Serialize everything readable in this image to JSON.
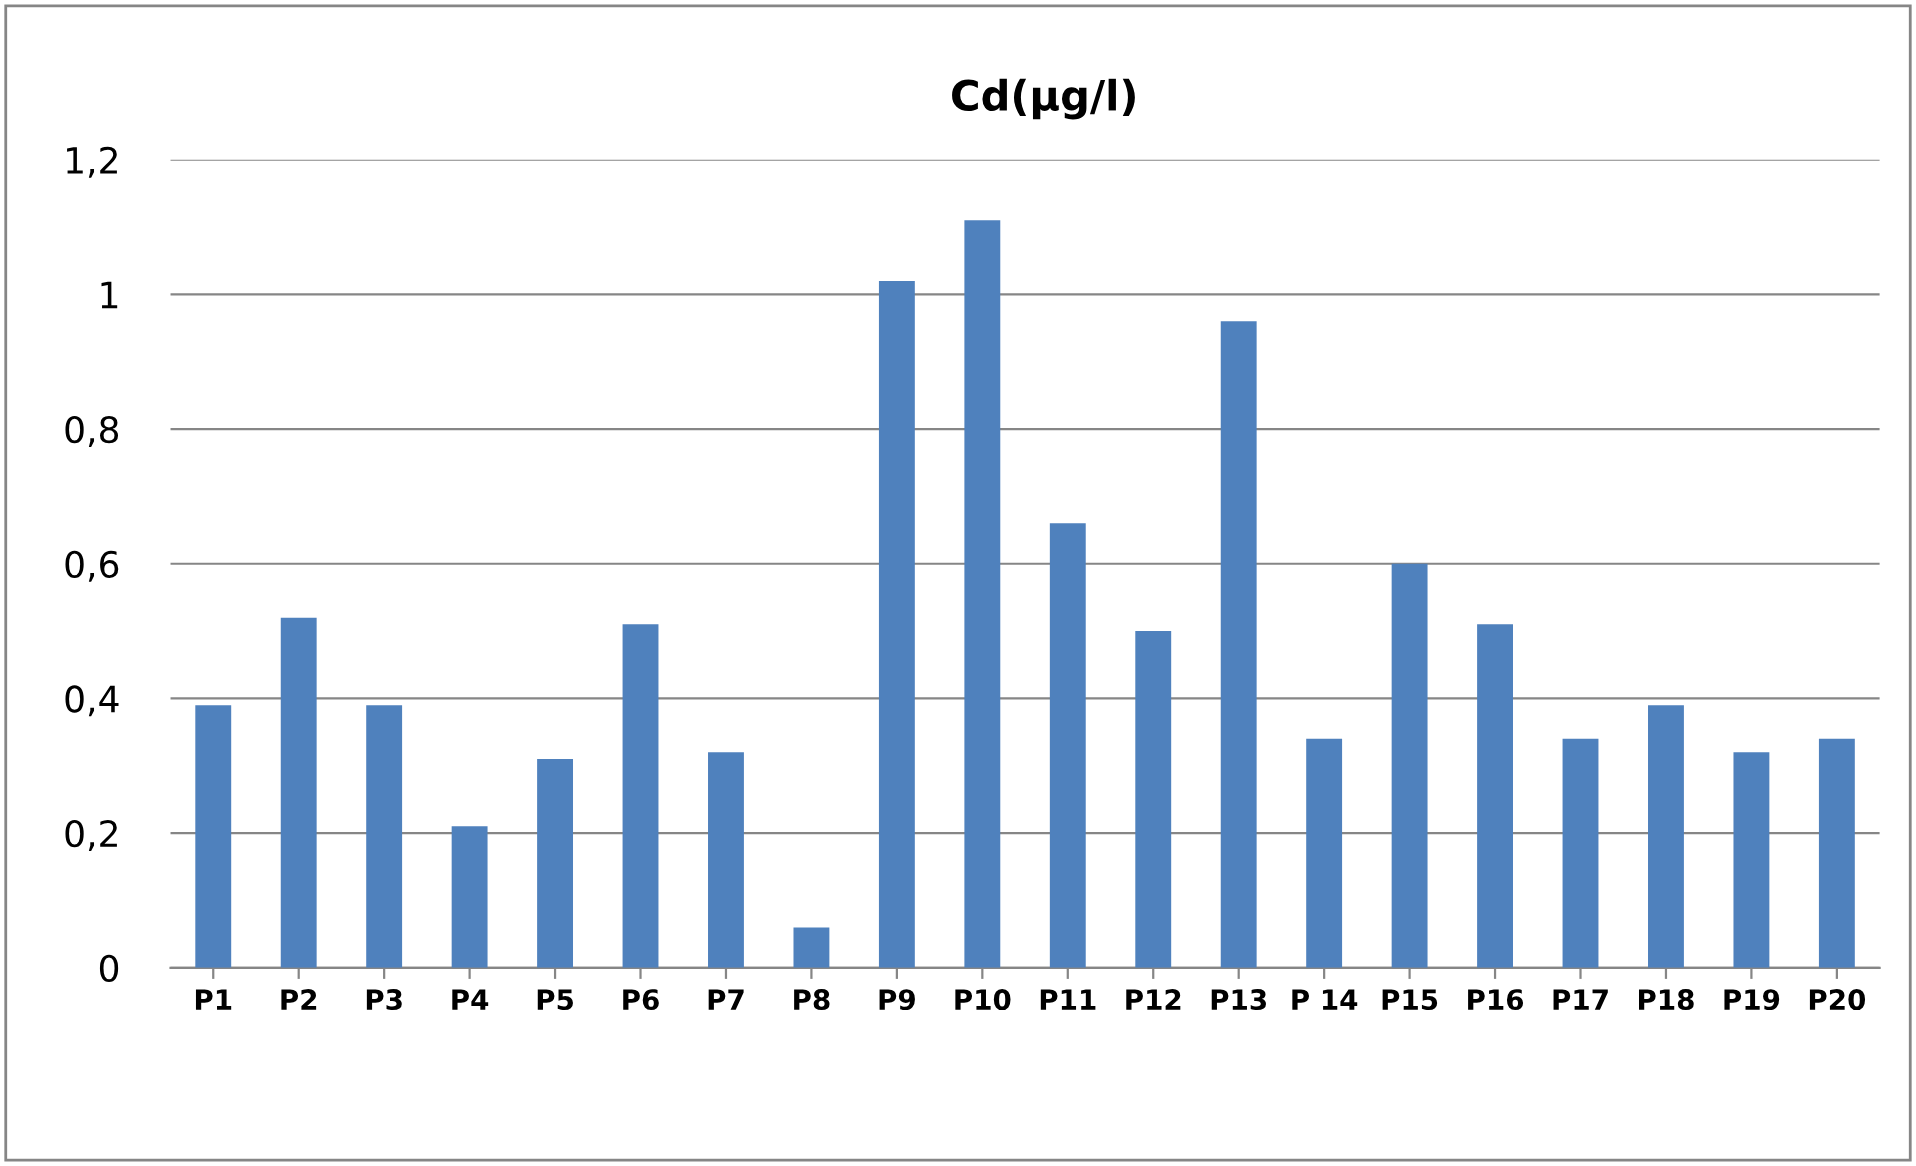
{
  "chart_data": {
    "type": "bar",
    "title": "Cd(µg/l)",
    "categories": [
      "P1",
      "P2",
      "P3",
      "P4",
      "P5",
      "P6",
      "P7",
      "P8",
      "P9",
      "P10",
      "P11",
      "P12",
      "P13",
      "P 14",
      "P15",
      "P16",
      "P17",
      "P18",
      "P19",
      "P20"
    ],
    "values": [
      0.39,
      0.52,
      0.39,
      0.21,
      0.31,
      0.51,
      0.32,
      0.06,
      1.02,
      1.11,
      0.66,
      0.5,
      0.96,
      0.34,
      0.6,
      0.51,
      0.34,
      0.39,
      0.32,
      0.34
    ],
    "color": "#4f81bd",
    "ylim": [
      0,
      1.2
    ],
    "yticks": [
      0,
      {
        "value": 0.2,
        "label": "0,2"
      },
      {
        "value": 0.4,
        "label": "0,4"
      },
      {
        "value": 0.6,
        "label": "0,6"
      },
      {
        "value": 0.8,
        "label": "0,8"
      },
      1,
      {
        "value": 1.2,
        "label": "1,2"
      }
    ],
    "grid": "y"
  }
}
